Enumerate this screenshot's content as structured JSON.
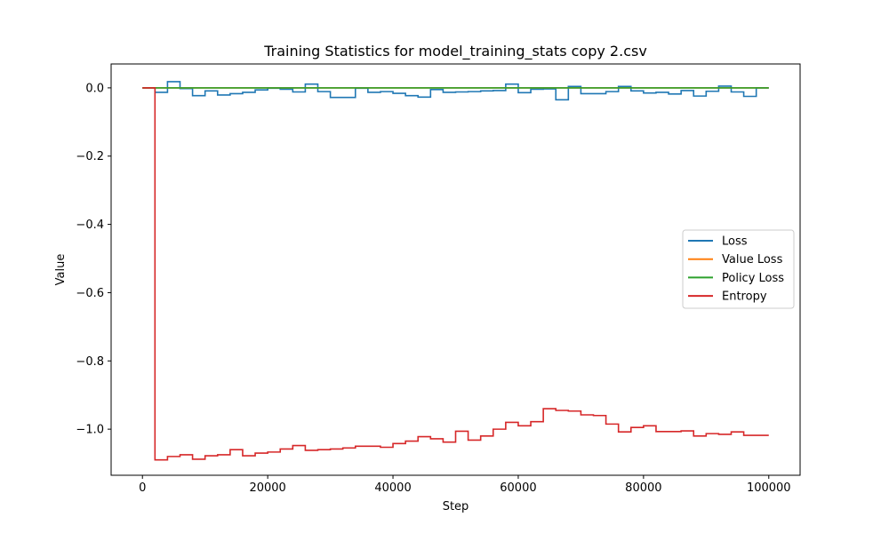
{
  "chart_data": {
    "type": "line",
    "title": "Training Statistics for model_training_stats copy 2.csv",
    "xlabel": "Step",
    "ylabel": "Value",
    "xlim": [
      -5000,
      105000
    ],
    "ylim": [
      -1.135,
      0.07
    ],
    "xticks": [
      0,
      20000,
      40000,
      60000,
      80000,
      100000
    ],
    "xtick_labels": [
      "0",
      "20000",
      "40000",
      "60000",
      "80000",
      "100000"
    ],
    "yticks": [
      -1.0,
      -0.8,
      -0.6,
      -0.4,
      -0.2,
      0.0
    ],
    "ytick_labels": [
      "−1.0",
      "−0.8",
      "−0.6",
      "−0.4",
      "−0.2",
      "0.0"
    ],
    "grid": false,
    "legend_position": "center right",
    "step_style": "post",
    "series": [
      {
        "name": "Loss",
        "color": "#1f77b4",
        "x": [
          0,
          2000,
          4000,
          6000,
          8000,
          10000,
          12000,
          14000,
          16000,
          18000,
          20000,
          22000,
          24000,
          26000,
          28000,
          30000,
          32000,
          34000,
          36000,
          38000,
          40000,
          42000,
          44000,
          46000,
          48000,
          50000,
          52000,
          54000,
          56000,
          58000,
          60000,
          62000,
          64000,
          66000,
          68000,
          70000,
          72000,
          74000,
          76000,
          78000,
          80000,
          82000,
          84000,
          86000,
          88000,
          90000,
          92000,
          94000,
          96000,
          98000,
          100000
        ],
        "values": [
          0.0,
          -0.013,
          0.018,
          -0.002,
          -0.023,
          -0.009,
          -0.021,
          -0.017,
          -0.013,
          -0.006,
          -0.001,
          -0.004,
          -0.012,
          0.011,
          -0.011,
          -0.028,
          -0.028,
          -0.001,
          -0.013,
          -0.011,
          -0.016,
          -0.023,
          -0.027,
          -0.005,
          -0.013,
          -0.012,
          -0.011,
          -0.009,
          -0.008,
          0.011,
          -0.014,
          -0.004,
          -0.003,
          -0.035,
          0.004,
          -0.017,
          -0.017,
          -0.011,
          0.004,
          -0.009,
          -0.015,
          -0.013,
          -0.018,
          -0.008,
          -0.024,
          -0.01,
          0.005,
          -0.012,
          -0.025,
          0.0,
          0.0
        ]
      },
      {
        "name": "Value Loss",
        "color": "#ff7f0e",
        "x": [
          0,
          100000
        ],
        "values": [
          0.0,
          0.0
        ]
      },
      {
        "name": "Policy Loss",
        "color": "#2ca02c",
        "x": [
          0,
          100000
        ],
        "values": [
          0.0,
          0.0
        ]
      },
      {
        "name": "Entropy",
        "color": "#d62728",
        "x": [
          0,
          2000,
          4000,
          6000,
          8000,
          10000,
          12000,
          14000,
          16000,
          18000,
          20000,
          22000,
          24000,
          26000,
          28000,
          30000,
          32000,
          34000,
          36000,
          38000,
          40000,
          42000,
          44000,
          46000,
          48000,
          50000,
          52000,
          54000,
          56000,
          58000,
          60000,
          62000,
          64000,
          66000,
          68000,
          70000,
          72000,
          74000,
          76000,
          78000,
          80000,
          82000,
          84000,
          86000,
          88000,
          90000,
          92000,
          94000,
          96000,
          98000,
          100000
        ],
        "values": [
          0.0,
          -1.09,
          -1.08,
          -1.075,
          -1.088,
          -1.078,
          -1.075,
          -1.06,
          -1.078,
          -1.07,
          -1.067,
          -1.058,
          -1.048,
          -1.062,
          -1.06,
          -1.058,
          -1.055,
          -1.05,
          -1.05,
          -1.053,
          -1.042,
          -1.035,
          -1.022,
          -1.028,
          -1.038,
          -1.006,
          -1.032,
          -1.02,
          -1.0,
          -0.98,
          -0.99,
          -0.978,
          -0.94,
          -0.945,
          -0.947,
          -0.958,
          -0.96,
          -0.985,
          -1.008,
          -0.995,
          -0.99,
          -1.007,
          -1.007,
          -1.005,
          -1.02,
          -1.013,
          -1.015,
          -1.008,
          -1.018,
          -1.018,
          -1.018
        ]
      }
    ]
  }
}
